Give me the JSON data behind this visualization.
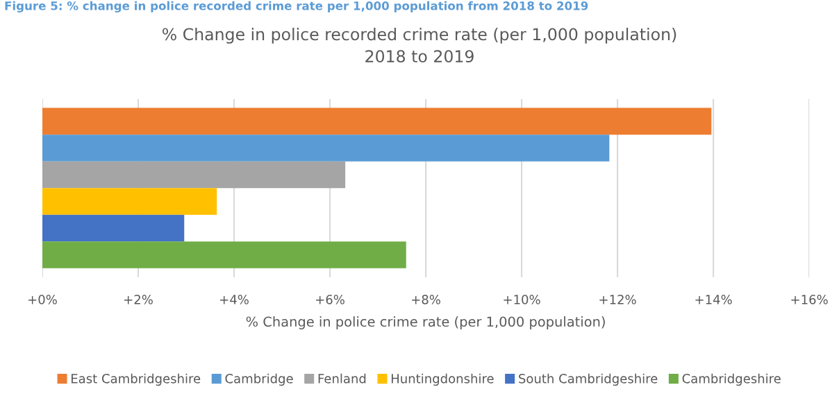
{
  "chart_data": {
    "type": "bar",
    "orientation": "horizontal",
    "title": "% Change in police recorded crime rate (per 1,000 population)\n2018 to 2019",
    "xlabel": "% Change in police crime rate (per 1,000 population)",
    "annotations": [
      "Figure 5: % change in police recorded crime rate per 1,000 population from 2018 to 2019"
    ],
    "categories": [
      null
    ],
    "series": [
      {
        "name": "East Cambridgeshire",
        "color": "#ed7d31",
        "values": [
          13.96
        ]
      },
      {
        "name": "Cambridge",
        "color": "#5b9bd5",
        "values": [
          11.83
        ]
      },
      {
        "name": "Fenland",
        "color": "#a5a5a5",
        "values": [
          6.32
        ]
      },
      {
        "name": "Huntingdonshire",
        "color": "#ffc000",
        "values": [
          3.64
        ]
      },
      {
        "name": "South Cambridgeshire",
        "color": "#4472c4",
        "values": [
          2.96
        ]
      },
      {
        "name": "Cambridgeshire",
        "color": "#70ad47",
        "values": [
          7.59
        ]
      }
    ],
    "xlim": [
      0,
      16
    ],
    "xticks": [
      {
        "value": 0,
        "label": "+0%"
      },
      {
        "value": 2,
        "label": "+2%"
      },
      {
        "value": 4,
        "label": "+4%"
      },
      {
        "value": 6,
        "label": "+6%"
      },
      {
        "value": 8,
        "label": "+8%"
      },
      {
        "value": 10,
        "label": "+10%"
      },
      {
        "value": 12,
        "label": "+12%"
      },
      {
        "value": 14,
        "label": "+14%"
      },
      {
        "value": 16,
        "label": "+16%"
      }
    ],
    "grid": "x",
    "legend": "bottom"
  }
}
